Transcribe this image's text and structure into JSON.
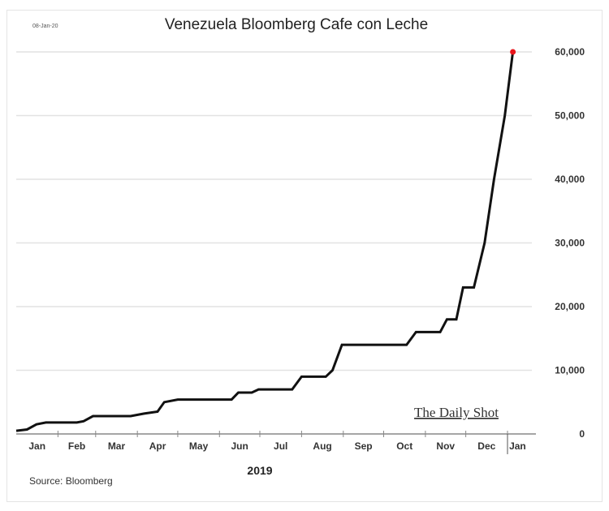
{
  "chart_data": {
    "type": "line",
    "title": "Venezuela Bloomberg Cafe con Leche",
    "date_label": "08-Jan-20",
    "xlabel": "2019",
    "ylabel": "",
    "source": "Source: Bloomberg",
    "watermark": "The Daily Shot",
    "x_unit": "day of 2019",
    "xlim": [
      0,
      380
    ],
    "ylim": [
      0,
      60000
    ],
    "yticks": [
      0,
      10000,
      20000,
      30000,
      40000,
      50000,
      60000
    ],
    "ytick_labels": [
      "0",
      "10,000",
      "20,000",
      "30,000",
      "40,000",
      "50,000",
      "60,000"
    ],
    "month_labels": [
      "Jan",
      "Feb",
      "Mar",
      "Apr",
      "May",
      "Jun",
      "Jul",
      "Aug",
      "Sep",
      "Oct",
      "Nov",
      "Dec",
      "Jan"
    ],
    "grid": true,
    "line_color": "#111111",
    "last_point_color": "#e8141b",
    "series": [
      {
        "name": "Cafe con Leche price",
        "x": [
          0,
          8,
          15,
          22,
          45,
          50,
          57,
          85,
          95,
          105,
          110,
          120,
          160,
          165,
          175,
          180,
          205,
          212,
          230,
          235,
          242,
          290,
          297,
          315,
          320,
          327,
          332,
          340,
          348,
          355,
          363,
          369
        ],
        "y": [
          500,
          700,
          1500,
          1800,
          1800,
          2000,
          2800,
          2800,
          3200,
          3500,
          5000,
          5400,
          5400,
          6500,
          6500,
          7000,
          7000,
          9000,
          9000,
          10000,
          14000,
          14000,
          16000,
          16000,
          18000,
          18000,
          23000,
          23000,
          30000,
          40000,
          50000,
          60000
        ]
      }
    ]
  }
}
